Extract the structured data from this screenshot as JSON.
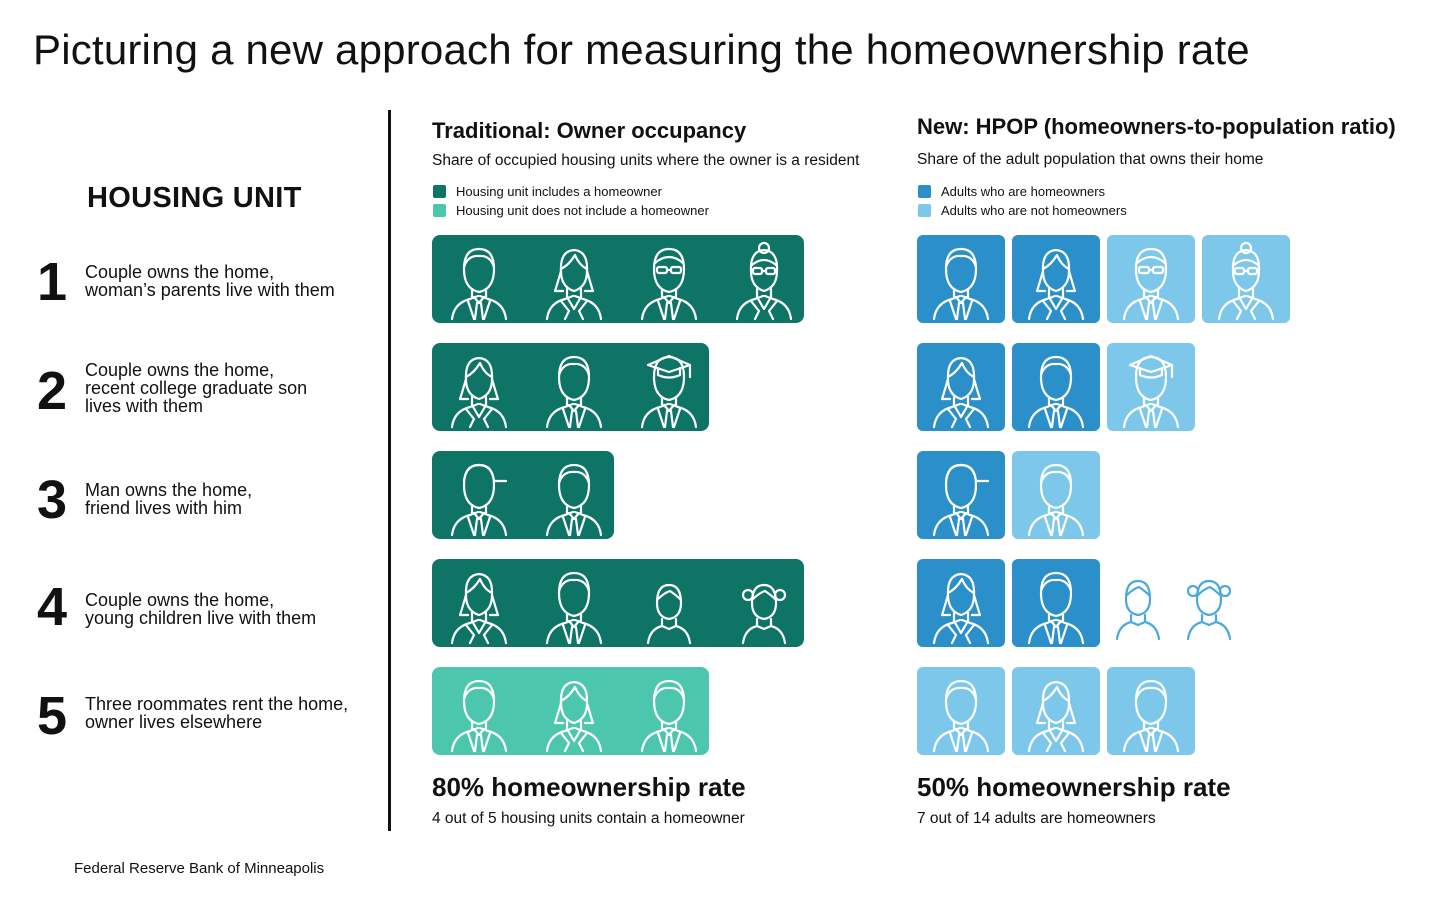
{
  "title": "Picturing a new approach for measuring the homeownership rate",
  "housing_unit": {
    "heading": "HOUSING UNIT",
    "rows": [
      {
        "number": "1",
        "lines": [
          "Couple owns the home,",
          "woman’s parents live with them"
        ]
      },
      {
        "number": "2",
        "lines": [
          "Couple owns the home,",
          "recent college graduate son",
          "lives with them"
        ]
      },
      {
        "number": "3",
        "lines": [
          "Man owns the home,",
          "friend lives with him"
        ]
      },
      {
        "number": "4",
        "lines": [
          "Couple owns the home,",
          "young children live with them"
        ]
      },
      {
        "number": "5",
        "lines": [
          "Three roommates rent the home,",
          "owner lives elsewhere"
        ]
      }
    ]
  },
  "traditional": {
    "title": "Traditional: Owner occupancy",
    "subtitle": "Share of occupied housing units where the owner is a resident",
    "legend": [
      {
        "label": "Housing unit includes a homeowner",
        "color": "#0e7466"
      },
      {
        "label": "Housing unit does not include a homeowner",
        "color": "#4cc6ad"
      }
    ],
    "units": [
      {
        "includes_homeowner": true,
        "people": [
          "man",
          "woman",
          "man-glasses",
          "woman-glasses-bun"
        ]
      },
      {
        "includes_homeowner": true,
        "people": [
          "woman",
          "man",
          "graduate"
        ]
      },
      {
        "includes_homeowner": true,
        "people": [
          "man-cap",
          "man"
        ]
      },
      {
        "includes_homeowner": true,
        "people": [
          "woman",
          "man",
          "boy",
          "girl"
        ]
      },
      {
        "includes_homeowner": false,
        "people": [
          "man",
          "woman",
          "man"
        ]
      }
    ],
    "rate": "80% homeownership rate",
    "rate_sub": "4 out of 5 housing units contain a homeowner"
  },
  "hpop": {
    "title": "New: HPOP (homeowners-to-population ratio)",
    "subtitle": "Share of the adult population that owns their home",
    "legend": [
      {
        "label": "Adults who are homeowners",
        "color": "#2b8fca"
      },
      {
        "label": "Adults who are not homeowners",
        "color": "#7dc8ea"
      }
    ],
    "units": [
      {
        "people": [
          {
            "type": "man",
            "status": "owner"
          },
          {
            "type": "woman",
            "status": "owner"
          },
          {
            "type": "man-glasses",
            "status": "non-owner"
          },
          {
            "type": "woman-glasses-bun",
            "status": "non-owner"
          }
        ]
      },
      {
        "people": [
          {
            "type": "woman",
            "status": "owner"
          },
          {
            "type": "man",
            "status": "owner"
          },
          {
            "type": "graduate",
            "status": "non-owner"
          }
        ]
      },
      {
        "people": [
          {
            "type": "man-cap",
            "status": "owner"
          },
          {
            "type": "man",
            "status": "non-owner"
          }
        ]
      },
      {
        "people": [
          {
            "type": "woman",
            "status": "owner"
          },
          {
            "type": "man",
            "status": "owner"
          },
          {
            "type": "boy",
            "status": "child"
          },
          {
            "type": "girl",
            "status": "child"
          }
        ]
      },
      {
        "people": [
          {
            "type": "man",
            "status": "non-owner"
          },
          {
            "type": "woman",
            "status": "non-owner"
          },
          {
            "type": "man",
            "status": "non-owner"
          }
        ]
      }
    ],
    "rate": "50% homeownership rate",
    "rate_sub": "7 out of 14 adults are homeowners"
  },
  "colors": {
    "owner_unit": "#0e7466",
    "non_owner_unit": "#4cc6ad",
    "adult_owner": "#2b8fca",
    "adult_non_owner": "#7dc8ea",
    "child_outline": "#4aa9dc"
  },
  "source": "Federal Reserve Bank of Minneapolis"
}
